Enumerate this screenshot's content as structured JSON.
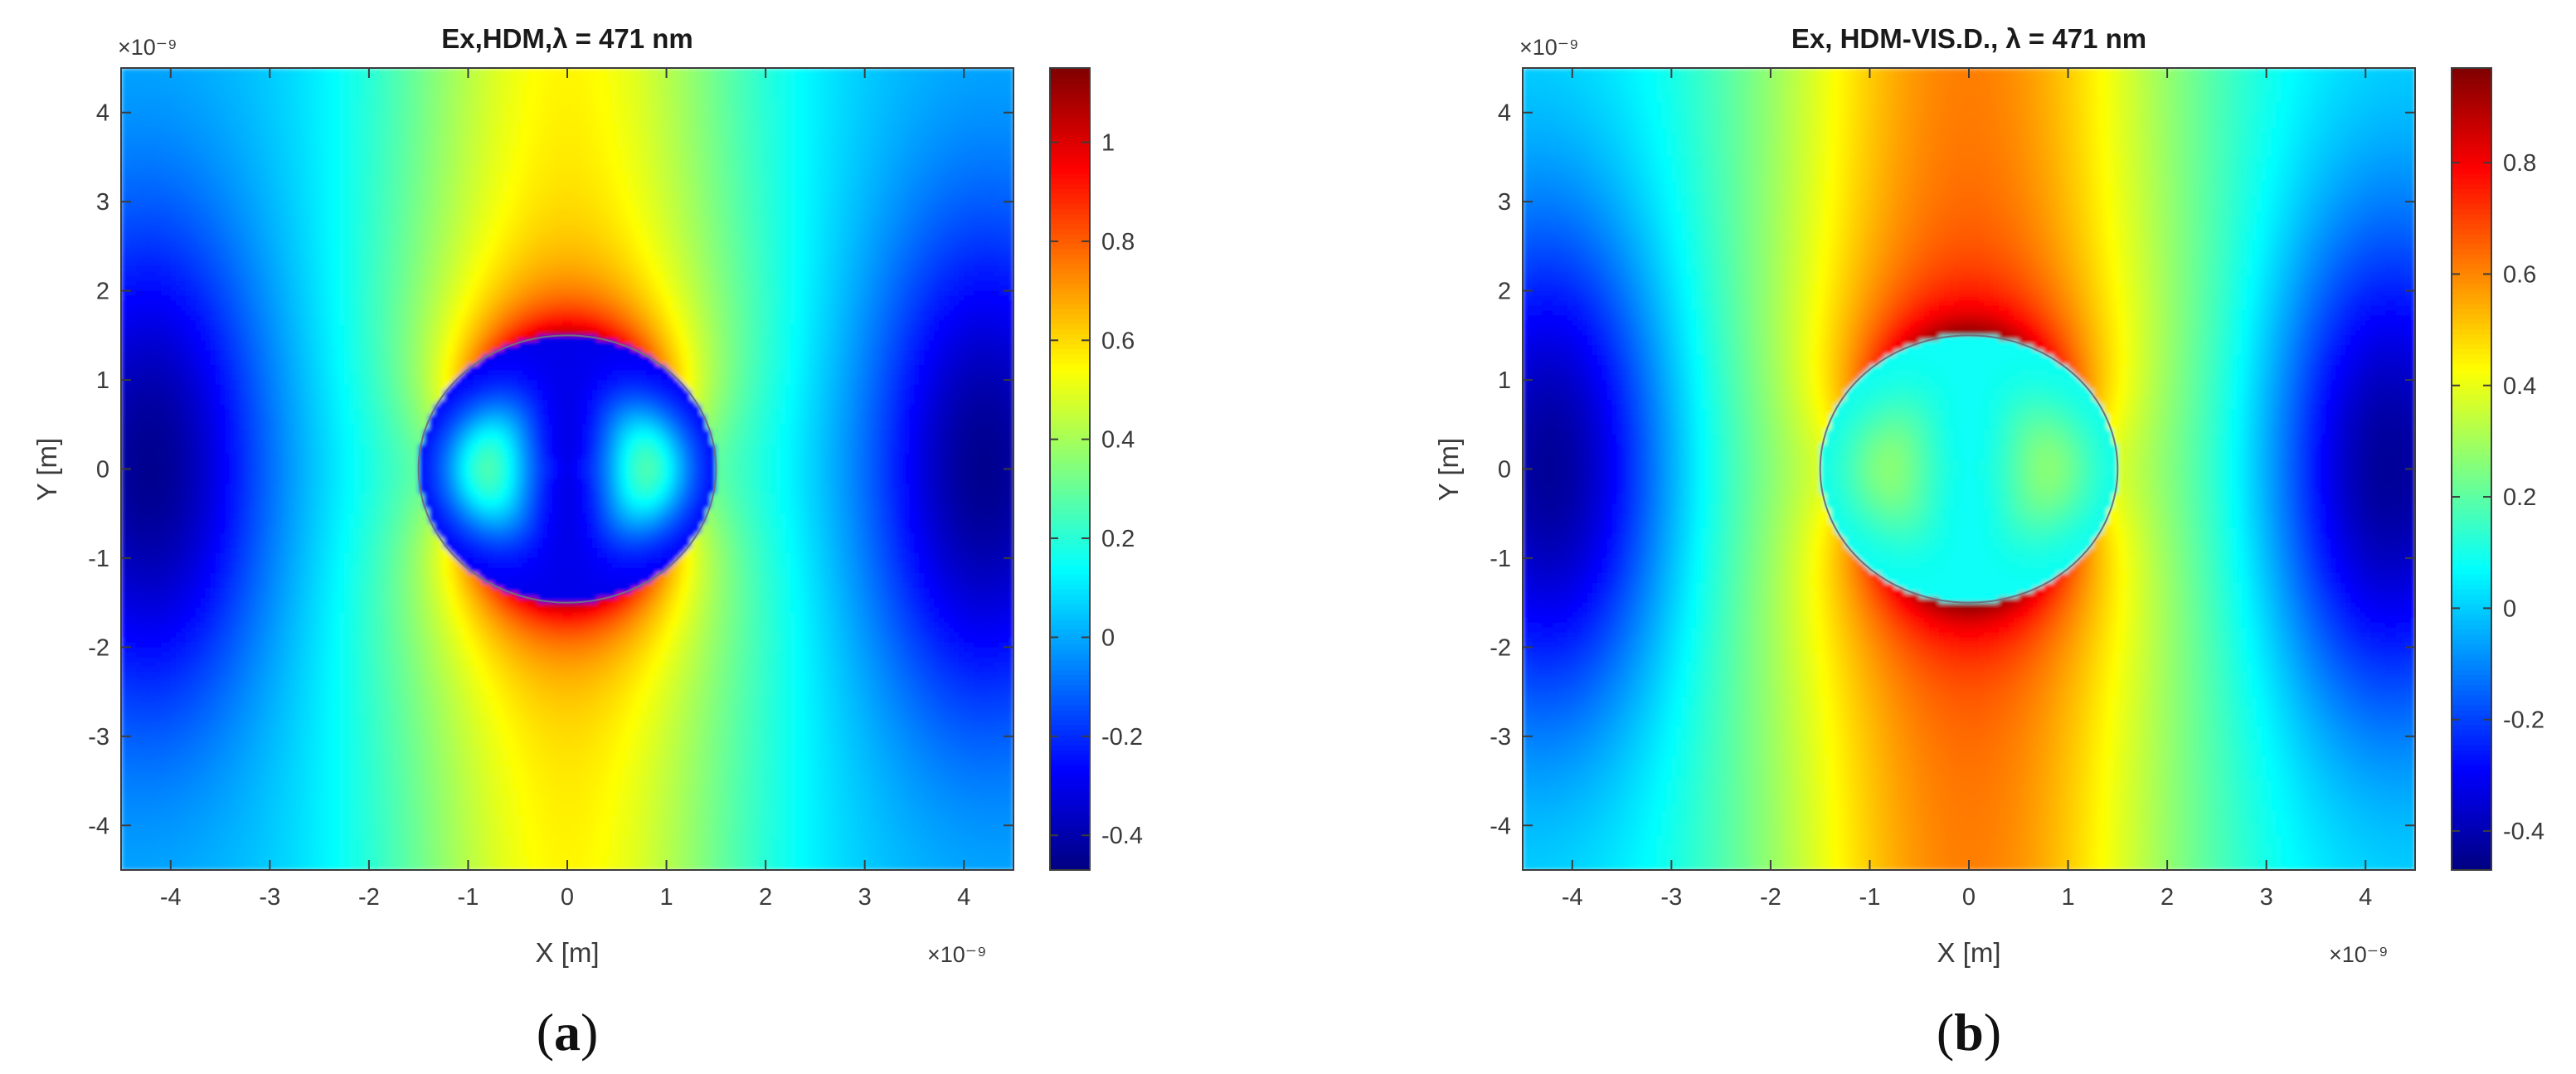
{
  "chart_data": [
    {
      "type": "heatmap",
      "panel_label": "a",
      "title": "Ex,HDM,λ = 471 nm",
      "xlabel": "X [m]",
      "ylabel": "Y [m]",
      "xlim": [
        -4.5,
        4.5
      ],
      "ylim": [
        -4.5,
        4.5
      ],
      "x_ticks": [
        -4,
        -3,
        -2,
        -1,
        0,
        1,
        2,
        3,
        4
      ],
      "y_ticks": [
        -4,
        -3,
        -2,
        -1,
        0,
        1,
        2,
        3,
        4
      ],
      "x_multiplier": "×10⁻⁹",
      "y_multiplier": "×10⁻⁹",
      "colormap": "jet",
      "clim": [
        -0.47,
        1.15
      ],
      "colorbar_ticks": [
        -0.4,
        -0.2,
        0,
        0.2,
        0.4,
        0.6,
        0.8,
        1
      ],
      "particle_radius": 1.5,
      "particle_interior_value": -0.3,
      "hotspot_peak_value": 1.05,
      "side_minimum_value": -0.45,
      "grid": false
    },
    {
      "type": "heatmap",
      "panel_label": "b",
      "title": "Ex, HDM-VIS.D., λ = 471 nm",
      "xlabel": "X [m]",
      "ylabel": "Y [m]",
      "xlim": [
        -4.5,
        4.5
      ],
      "ylim": [
        -4.5,
        4.5
      ],
      "x_ticks": [
        -4,
        -3,
        -2,
        -1,
        0,
        1,
        2,
        3,
        4
      ],
      "y_ticks": [
        -4,
        -3,
        -2,
        -1,
        0,
        1,
        2,
        3,
        4
      ],
      "x_multiplier": "×10⁻⁹",
      "y_multiplier": "×10⁻⁹",
      "colormap": "jet",
      "clim": [
        -0.47,
        0.97
      ],
      "colorbar_ticks": [
        -0.4,
        -0.2,
        0,
        0.2,
        0.4,
        0.6,
        0.8
      ],
      "particle_radius": 1.5,
      "particle_interior_value": 0.08,
      "hotspot_peak_value": 0.95,
      "side_minimum_value": -0.45,
      "grid": false
    }
  ]
}
